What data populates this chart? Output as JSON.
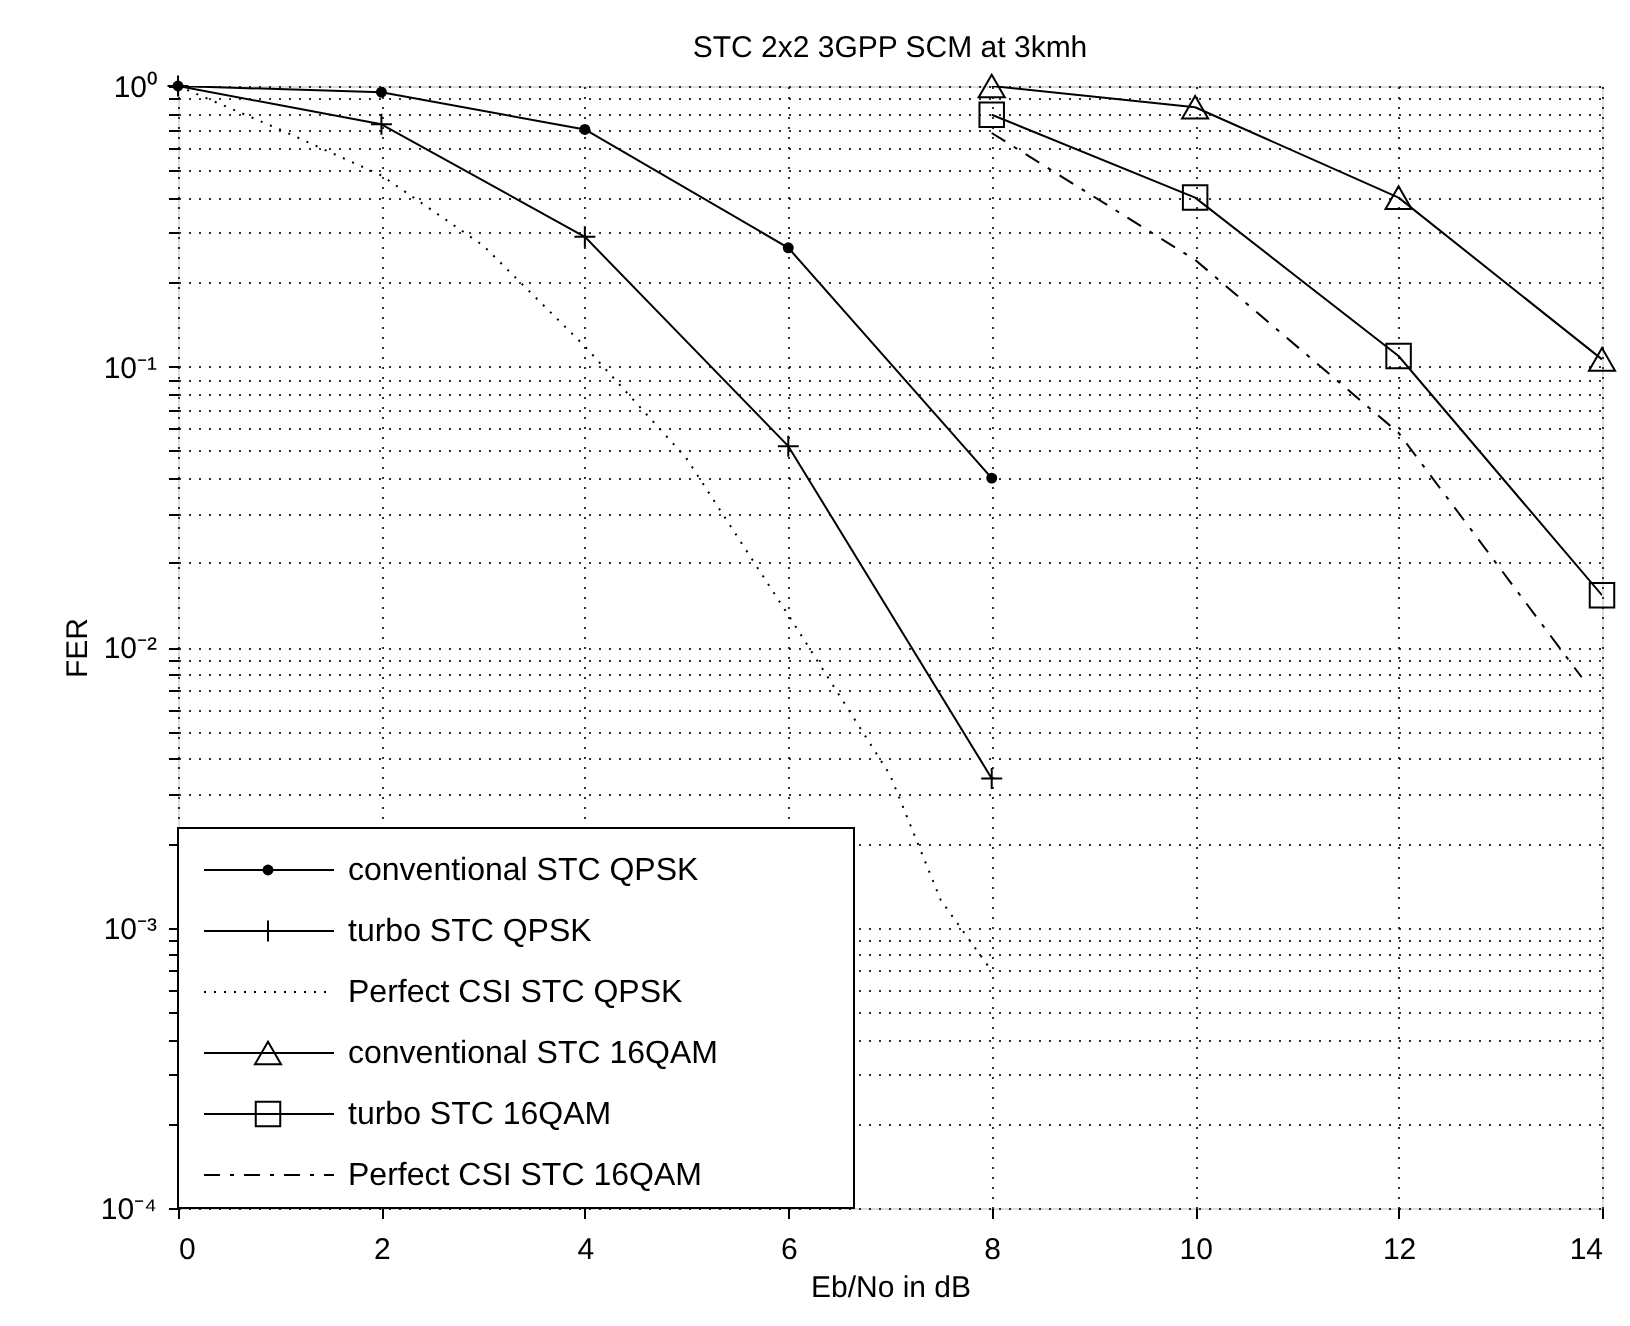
{
  "chart_data": {
    "type": "line",
    "title": "STC 2x2 3GPP SCM at 3kmh",
    "xlabel": "Eb/No in dB",
    "ylabel": "FER",
    "log": "y",
    "grid": true,
    "legend": "bottom left",
    "xlim": [
      0,
      14
    ],
    "xticks": [
      0,
      2,
      4,
      6,
      8,
      10,
      12,
      14
    ],
    "ylim": [
      0.0001,
      1
    ],
    "yticks": [
      {
        "value": 0.0001,
        "label": "10⁻⁴"
      },
      {
        "value": 0.0002,
        "label": null
      },
      {
        "value": 0.0003,
        "label": null
      },
      {
        "value": 0.0004,
        "label": null
      },
      {
        "value": 0.0005,
        "label": null
      },
      {
        "value": 0.0006,
        "label": null
      },
      {
        "value": 0.0007,
        "label": null
      },
      {
        "value": 0.0008,
        "label": null
      },
      {
        "value": 0.0009,
        "label": null
      },
      {
        "value": 0.001,
        "label": "10⁻³"
      },
      {
        "value": 0.002,
        "label": null
      },
      {
        "value": 0.003,
        "label": null
      },
      {
        "value": 0.004,
        "label": null
      },
      {
        "value": 0.005,
        "label": null
      },
      {
        "value": 0.006,
        "label": null
      },
      {
        "value": 0.007,
        "label": null
      },
      {
        "value": 0.008,
        "label": null
      },
      {
        "value": 0.009,
        "label": null
      },
      {
        "value": 0.01,
        "label": "10⁻²"
      },
      {
        "value": 0.02,
        "label": null
      },
      {
        "value": 0.03,
        "label": null
      },
      {
        "value": 0.04,
        "label": null
      },
      {
        "value": 0.05,
        "label": null
      },
      {
        "value": 0.06,
        "label": null
      },
      {
        "value": 0.07,
        "label": null
      },
      {
        "value": 0.08,
        "label": null
      },
      {
        "value": 0.09,
        "label": null
      },
      {
        "value": 0.1,
        "label": "10⁻¹"
      },
      {
        "value": 0.2,
        "label": null
      },
      {
        "value": 0.3,
        "label": null
      },
      {
        "value": 0.4,
        "label": null
      },
      {
        "value": 0.5,
        "label": null
      },
      {
        "value": 0.6,
        "label": null
      },
      {
        "value": 0.7,
        "label": null
      },
      {
        "value": 0.8,
        "label": null
      },
      {
        "value": 0.9,
        "label": null
      },
      {
        "value": 1,
        "label": "10⁰"
      }
    ],
    "series": [
      {
        "name": "conventional STC QPSK",
        "color": "#000000",
        "marker": "circle",
        "line_style": "solid",
        "x": [
          0,
          2,
          4,
          6,
          8
        ],
        "values": [
          1.0,
          0.95,
          0.7,
          0.265,
          0.04
        ]
      },
      {
        "name": "turbo STC QPSK",
        "color": "#000000",
        "marker": "cross",
        "line_style": "solid",
        "x": [
          0,
          2,
          4,
          6,
          8
        ],
        "values": [
          1.0,
          0.73,
          0.29,
          0.052,
          0.0034
        ]
      },
      {
        "name": "Perfect CSI STC QPSK",
        "color": "#000000",
        "marker": "none",
        "line_style": "dotted",
        "x": [
          0,
          1,
          2,
          3,
          4,
          5,
          6,
          7,
          7.5,
          8
        ],
        "values": [
          1.0,
          0.7,
          0.48,
          0.27,
          0.118,
          0.047,
          0.013,
          0.0035,
          0.00125,
          0.0007
        ]
      },
      {
        "name": "conventional STC 16QAM",
        "color": "#000000",
        "marker": "triangle",
        "line_style": "solid",
        "x": [
          8,
          10,
          12,
          14
        ],
        "values": [
          1.0,
          0.84,
          0.4,
          0.106
        ]
      },
      {
        "name": "turbo STC 16QAM",
        "color": "#000000",
        "marker": "square",
        "line_style": "solid",
        "x": [
          8,
          10,
          12,
          14
        ],
        "values": [
          0.79,
          0.4,
          0.109,
          0.0153
        ]
      },
      {
        "name": "Perfect CSI STC 16QAM",
        "color": "#000000",
        "marker": "none",
        "line_style": "dashed",
        "x": [
          8,
          10,
          12,
          13.8
        ],
        "values": [
          0.68,
          0.24,
          0.058,
          0.0078
        ]
      }
    ]
  }
}
